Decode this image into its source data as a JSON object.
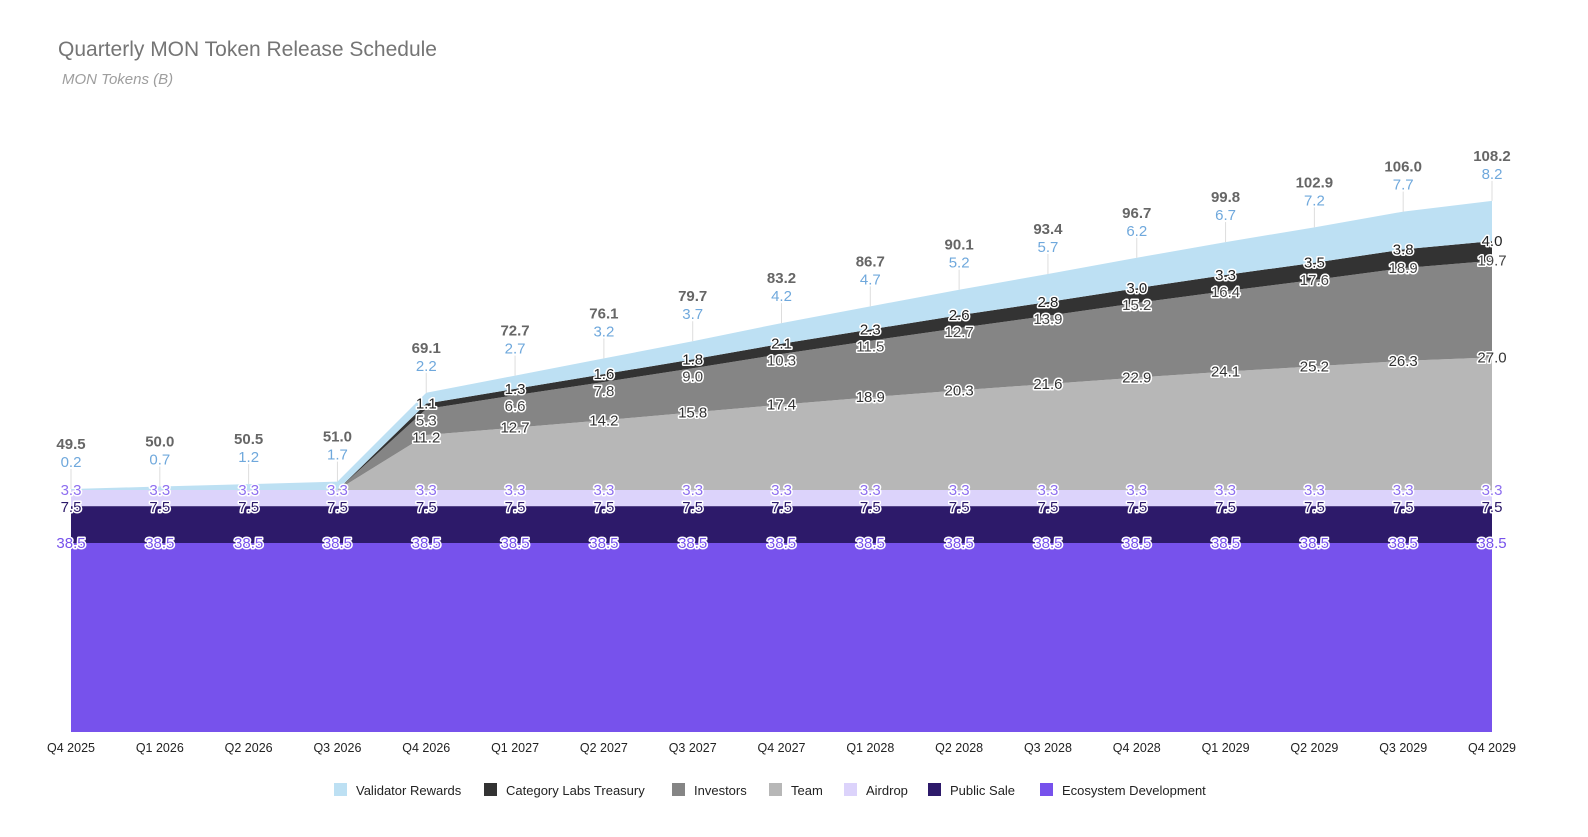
{
  "chart_data": {
    "type": "area",
    "stacked": true,
    "title": "Quarterly MON Token Release Schedule",
    "subtitle": "MON Tokens (B)",
    "categories": [
      "Q4 2025",
      "Q1 2026",
      "Q2 2026",
      "Q3 2026",
      "Q4 2026",
      "Q1 2027",
      "Q2 2027",
      "Q3 2027",
      "Q4 2027",
      "Q1 2028",
      "Q2 2028",
      "Q3 2028",
      "Q4 2028",
      "Q1 2029",
      "Q2 2029",
      "Q3 2029",
      "Q4 2029"
    ],
    "ylim": [
      0,
      120
    ],
    "grid": false,
    "legend": "bottom",
    "series": [
      {
        "name": "Ecosystem Development",
        "color": "#7752ec",
        "label_color": "#7752ec",
        "values": [
          38.5,
          38.5,
          38.5,
          38.5,
          38.5,
          38.5,
          38.5,
          38.5,
          38.5,
          38.5,
          38.5,
          38.5,
          38.5,
          38.5,
          38.5,
          38.5,
          38.5
        ]
      },
      {
        "name": "Public Sale",
        "color": "#2d1a6a",
        "label_color": "#2d1a6a",
        "values": [
          7.5,
          7.5,
          7.5,
          7.5,
          7.5,
          7.5,
          7.5,
          7.5,
          7.5,
          7.5,
          7.5,
          7.5,
          7.5,
          7.5,
          7.5,
          7.5,
          7.5
        ]
      },
      {
        "name": "Airdrop",
        "color": "#dcd3fb",
        "label_color": "#8e6ff0",
        "values": [
          3.3,
          3.3,
          3.3,
          3.3,
          3.3,
          3.3,
          3.3,
          3.3,
          3.3,
          3.3,
          3.3,
          3.3,
          3.3,
          3.3,
          3.3,
          3.3,
          3.3
        ]
      },
      {
        "name": "Team",
        "color": "#b7b7b7",
        "label_color": "#333333",
        "values": [
          0,
          0,
          0,
          0,
          11.2,
          12.7,
          14.2,
          15.8,
          17.4,
          18.9,
          20.3,
          21.6,
          22.9,
          24.1,
          25.2,
          26.3,
          27.0
        ]
      },
      {
        "name": "Investors",
        "color": "#858585",
        "label_color": "#444444",
        "values": [
          0,
          0,
          0,
          0,
          5.3,
          6.6,
          7.8,
          9.0,
          10.3,
          11.5,
          12.7,
          13.9,
          15.2,
          16.4,
          17.6,
          18.9,
          19.7
        ]
      },
      {
        "name": "Category Labs Treasury",
        "color": "#333333",
        "label_color": "#222222",
        "values": [
          0,
          0,
          0,
          0,
          1.1,
          1.3,
          1.6,
          1.8,
          2.1,
          2.3,
          2.6,
          2.8,
          3.0,
          3.3,
          3.5,
          3.8,
          4.0
        ]
      },
      {
        "name": "Validator Rewards",
        "color": "#bde0f3",
        "label_color": "#6fa8dc",
        "values": [
          0.2,
          0.7,
          1.2,
          1.7,
          2.2,
          2.7,
          3.2,
          3.7,
          4.2,
          4.7,
          5.2,
          5.7,
          6.2,
          6.7,
          7.2,
          7.7,
          8.2
        ]
      }
    ],
    "totals": [
      "49.5",
      "50.0",
      "50.5",
      "51.0",
      "69.1",
      "72.7",
      "76.1",
      "79.7",
      "83.2",
      "86.7",
      "90.1",
      "93.4",
      "96.7",
      "99.8",
      "102.9",
      "106.0",
      "108.2"
    ],
    "legend_order": [
      "Validator Rewards",
      "Category Labs Treasury",
      "Investors",
      "Team",
      "Airdrop",
      "Public Sale",
      "Ecosystem Development"
    ]
  }
}
